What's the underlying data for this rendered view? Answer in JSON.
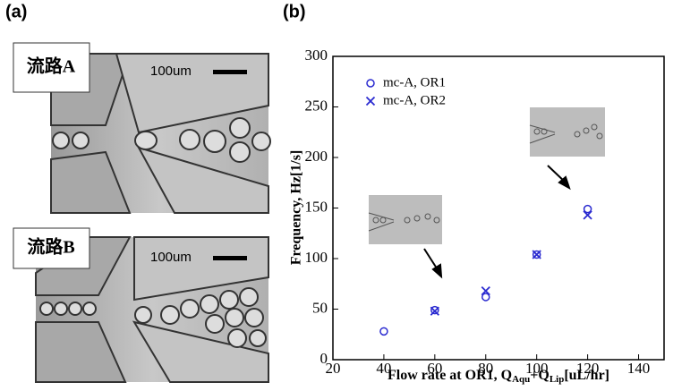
{
  "panel_a": {
    "label": "(a)",
    "image_a": {
      "label": "流路A",
      "scale": "100um"
    },
    "image_b": {
      "label": "流路B",
      "scale": "100um"
    }
  },
  "chart_data": {
    "type": "scatter",
    "panel_label": "(b)",
    "ylabel": "Frequency, Hz[1/s]",
    "xlabel": {
      "text": "Flow rate at OR1, Q",
      "sub1": "Aqu",
      "mid": "+Q",
      "sub2": "Lip",
      "end": "[uL/hr]"
    },
    "series": [
      {
        "name": "mc-A, OR1",
        "marker": "circle",
        "color": "#2a2ad0",
        "x": [
          40,
          60,
          80,
          100,
          120
        ],
        "values": [
          28,
          49,
          62,
          104,
          149
        ]
      },
      {
        "name": "mc-A, OR2",
        "marker": "x",
        "color": "#2a2ad0",
        "x": [
          60,
          80,
          100,
          120
        ],
        "values": [
          48,
          68,
          104,
          143
        ]
      }
    ],
    "xlim": [
      20,
      150
    ],
    "xticks": [
      20,
      40,
      60,
      80,
      100,
      120,
      140
    ],
    "ylim": [
      0,
      300
    ],
    "yticks": [
      0,
      50,
      100,
      150,
      200,
      250,
      300
    ],
    "legend": "upper-left"
  }
}
